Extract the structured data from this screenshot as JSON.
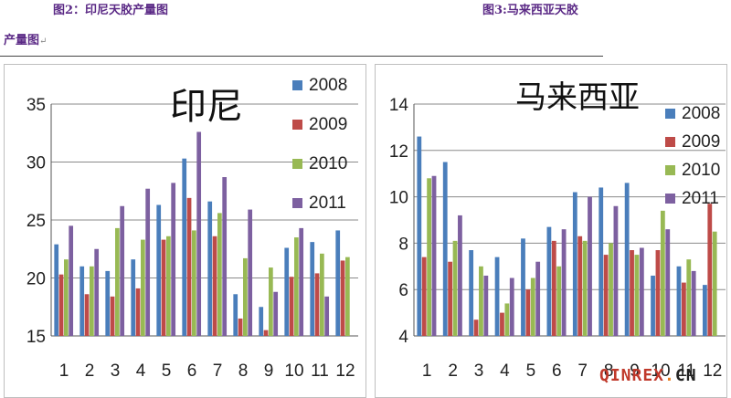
{
  "captions": {
    "left": "图2：印尼天胶产量图",
    "right": "图3:马来西亚天胶",
    "left_cont": "产量图",
    "return_mark": "↵"
  },
  "watermark": {
    "main": "QINREX",
    "dot": ".",
    "tld": "CN"
  },
  "colors": {
    "2008": "#4a7ebb",
    "2009": "#be4b48",
    "2010": "#98b954",
    "2011": "#7d60a0",
    "grid": "#8a8a8a",
    "axis": "#555555"
  },
  "chart_data": [
    {
      "type": "bar",
      "title": "印尼",
      "categories": [
        "1",
        "2",
        "3",
        "4",
        "5",
        "6",
        "7",
        "8",
        "9",
        "10",
        "11",
        "12"
      ],
      "ylim": [
        15,
        35
      ],
      "yticks": [
        15,
        20,
        25,
        30,
        35
      ],
      "grid": true,
      "legend": "top-right",
      "series": [
        {
          "name": "2008",
          "values": [
            22.9,
            21.0,
            20.6,
            21.6,
            26.3,
            30.3,
            26.6,
            18.6,
            17.5,
            22.6,
            23.1,
            24.1
          ]
        },
        {
          "name": "2009",
          "values": [
            20.3,
            18.6,
            18.4,
            19.1,
            23.3,
            26.9,
            23.6,
            16.5,
            15.5,
            20.1,
            20.4,
            21.5
          ]
        },
        {
          "name": "2010",
          "values": [
            21.6,
            21.0,
            24.3,
            23.3,
            23.6,
            24.1,
            25.6,
            21.7,
            20.9,
            23.5,
            22.1,
            21.8
          ]
        },
        {
          "name": "2011",
          "values": [
            24.5,
            22.5,
            26.2,
            27.7,
            28.2,
            32.6,
            28.7,
            25.9,
            18.8,
            24.3,
            18.4,
            null
          ]
        }
      ]
    },
    {
      "type": "bar",
      "title": "马来西亚",
      "categories": [
        "1",
        "2",
        "3",
        "4",
        "5",
        "6",
        "7",
        "8",
        "9",
        "10",
        "11",
        "12"
      ],
      "ylim": [
        4,
        14
      ],
      "yticks": [
        4,
        6,
        8,
        10,
        12,
        14
      ],
      "grid": true,
      "legend": "top-right",
      "series": [
        {
          "name": "2008",
          "values": [
            12.6,
            11.5,
            7.7,
            7.4,
            8.2,
            8.7,
            10.2,
            10.4,
            10.6,
            6.6,
            7.0,
            6.2
          ]
        },
        {
          "name": "2009",
          "values": [
            7.4,
            7.2,
            4.7,
            5.0,
            6.0,
            8.1,
            8.3,
            7.5,
            7.7,
            7.7,
            6.3,
            9.7
          ]
        },
        {
          "name": "2010",
          "values": [
            10.8,
            8.1,
            7.0,
            5.4,
            6.5,
            7.0,
            8.1,
            8.0,
            7.5,
            9.4,
            7.3,
            8.5
          ]
        },
        {
          "name": "2011",
          "values": [
            10.9,
            9.2,
            6.6,
            6.5,
            7.2,
            8.6,
            10.0,
            9.6,
            7.8,
            8.6,
            6.8,
            null
          ]
        }
      ]
    }
  ]
}
